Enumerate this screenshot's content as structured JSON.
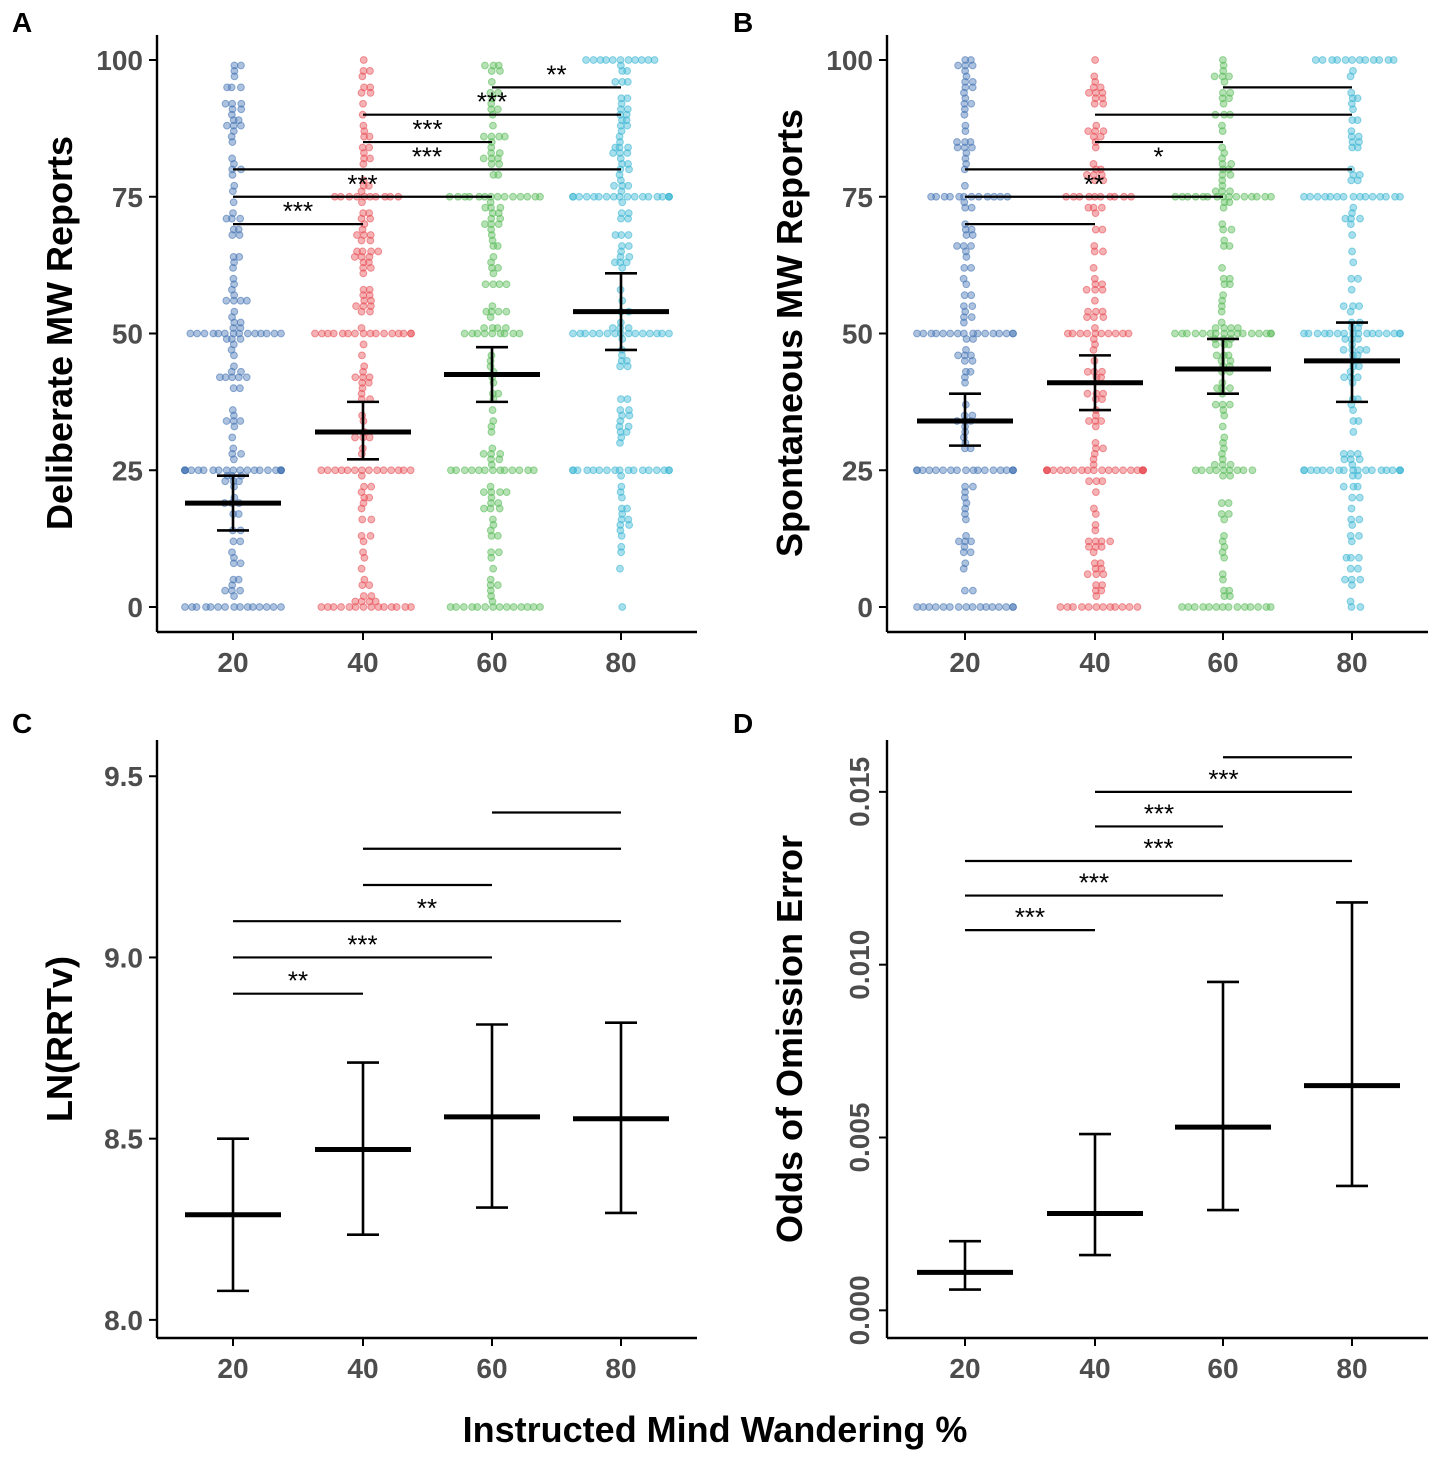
{
  "x_axis_title": "Instructed Mind Wandering %",
  "colors": {
    "20": "#4a78b5",
    "40": "#e8545a",
    "60": "#5cbd5c",
    "80": "#3fb8d4"
  },
  "chart_data": [
    {
      "panel": "A",
      "type": "scatter",
      "ylabel": "Deliberate MW Reports",
      "categories": [
        "20",
        "40",
        "60",
        "80"
      ],
      "ylim": [
        0,
        100
      ],
      "yticks": [
        "0",
        "25",
        "50",
        "75",
        "100"
      ],
      "means": [
        19,
        32,
        42.5,
        54
      ],
      "error_low": [
        14,
        27,
        37.5,
        47
      ],
      "error_high": [
        24,
        37.5,
        47.5,
        61
      ],
      "points": true,
      "comparisons": [
        {
          "from": "60",
          "to": "80",
          "label": "**",
          "y": 95
        },
        {
          "from": "40",
          "to": "80",
          "label": "***",
          "y": 90
        },
        {
          "from": "40",
          "to": "60",
          "label": "***",
          "y": 85
        },
        {
          "from": "20",
          "to": "80",
          "label": "***",
          "y": 80
        },
        {
          "from": "20",
          "to": "60",
          "label": "***",
          "y": 75
        },
        {
          "from": "20",
          "to": "40",
          "label": "***",
          "y": 70
        }
      ]
    },
    {
      "panel": "B",
      "type": "scatter",
      "ylabel": "Spontaneous MW Reports",
      "categories": [
        "20",
        "40",
        "60",
        "80"
      ],
      "ylim": [
        0,
        100
      ],
      "yticks": [
        "0",
        "25",
        "50",
        "75",
        "100"
      ],
      "means": [
        34,
        41,
        43.5,
        45
      ],
      "error_low": [
        29.5,
        36,
        39,
        37.5
      ],
      "error_high": [
        39,
        46,
        49,
        52
      ],
      "points": true,
      "comparisons": [
        {
          "from": "60",
          "to": "80",
          "label": "",
          "y": 95
        },
        {
          "from": "40",
          "to": "80",
          "label": "",
          "y": 90
        },
        {
          "from": "40",
          "to": "60",
          "label": "",
          "y": 85
        },
        {
          "from": "20",
          "to": "80",
          "label": "*",
          "y": 80
        },
        {
          "from": "20",
          "to": "60",
          "label": "**",
          "y": 75
        },
        {
          "from": "20",
          "to": "40",
          "label": "",
          "y": 70
        }
      ]
    },
    {
      "panel": "C",
      "type": "errorbar",
      "ylabel": "LN(RRTv)",
      "categories": [
        "20",
        "40",
        "60",
        "80"
      ],
      "ylim": [
        7.95,
        9.6
      ],
      "yticks": [
        "8.0",
        "8.5",
        "9.0",
        "9.5"
      ],
      "means": [
        8.29,
        8.47,
        8.56,
        8.555
      ],
      "error_low": [
        8.08,
        8.235,
        8.31,
        8.295
      ],
      "error_high": [
        8.5,
        8.71,
        8.815,
        8.82
      ],
      "points": false,
      "comparisons": [
        {
          "from": "60",
          "to": "80",
          "label": "",
          "y": 9.4
        },
        {
          "from": "40",
          "to": "80",
          "label": "",
          "y": 9.3
        },
        {
          "from": "40",
          "to": "60",
          "label": "",
          "y": 9.2
        },
        {
          "from": "20",
          "to": "80",
          "label": "**",
          "y": 9.1
        },
        {
          "from": "20",
          "to": "60",
          "label": "***",
          "y": 9.0
        },
        {
          "from": "20",
          "to": "40",
          "label": "**",
          "y": 8.9
        }
      ]
    },
    {
      "panel": "D",
      "type": "errorbar",
      "ylabel": "Odds of Omission Error",
      "categories": [
        "20",
        "40",
        "60",
        "80"
      ],
      "ylim": [
        -0.0008,
        0.0165
      ],
      "yticks": [
        "0.000",
        "0.005",
        "0.010",
        "0.015"
      ],
      "means": [
        0.0011,
        0.0028,
        0.0053,
        0.0065
      ],
      "error_low": [
        0.0006,
        0.0016,
        0.0029,
        0.0036
      ],
      "error_high": [
        0.002,
        0.0051,
        0.0095,
        0.0118
      ],
      "points": false,
      "comparisons": [
        {
          "from": "60",
          "to": "80",
          "label": "",
          "y": 0.016
        },
        {
          "from": "40",
          "to": "80",
          "label": "***",
          "y": 0.015
        },
        {
          "from": "40",
          "to": "60",
          "label": "***",
          "y": 0.014
        },
        {
          "from": "20",
          "to": "80",
          "label": "***",
          "y": 0.013
        },
        {
          "from": "20",
          "to": "60",
          "label": "***",
          "y": 0.012
        },
        {
          "from": "20",
          "to": "40",
          "label": "***",
          "y": 0.011
        }
      ]
    }
  ]
}
